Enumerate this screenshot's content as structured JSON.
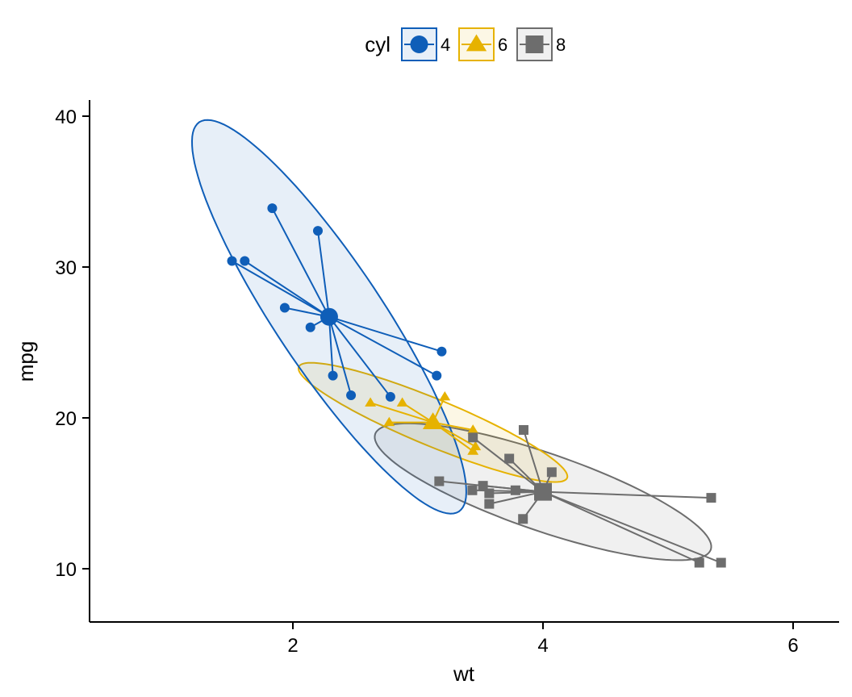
{
  "chart_data": {
    "type": "scatter",
    "xlabel": "wt",
    "ylabel": "mpg",
    "xlim": [
      0.45,
      6.4
    ],
    "ylim": [
      6.5,
      41.2
    ],
    "x_ticks": [
      2,
      4,
      6
    ],
    "y_ticks": [
      10,
      20,
      30,
      40
    ],
    "grid": false,
    "legend": {
      "title": "cyl",
      "position": "top",
      "entries": [
        "4",
        "6",
        "8"
      ]
    },
    "series": [
      {
        "name": "4",
        "color": "#0F5EB8",
        "marker": "circle",
        "centroid": [
          2.29,
          26.7
        ],
        "ellipse": {
          "center": [
            2.29,
            26.7
          ],
          "a": 2.9,
          "b": 0.66,
          "angle_deg": -56.3
        },
        "points": [
          [
            2.32,
            22.8
          ],
          [
            3.19,
            24.4
          ],
          [
            3.15,
            22.8
          ],
          [
            2.2,
            32.4
          ],
          [
            1.615,
            30.4
          ],
          [
            1.835,
            33.9
          ],
          [
            2.465,
            21.5
          ],
          [
            1.935,
            27.3
          ],
          [
            2.14,
            26.0
          ],
          [
            1.513,
            30.4
          ],
          [
            2.78,
            21.4
          ]
        ]
      },
      {
        "name": "6",
        "color": "#E6B200",
        "marker": "triangle",
        "centroid": [
          3.12,
          19.7
        ],
        "ellipse": {
          "center": [
            3.12,
            19.7
          ],
          "a": 1.8,
          "b": 0.29,
          "angle_deg": -22.5
        },
        "points": [
          [
            2.62,
            21.0
          ],
          [
            2.875,
            21.0
          ],
          [
            3.215,
            21.4
          ],
          [
            3.46,
            18.1
          ],
          [
            3.44,
            19.2
          ],
          [
            3.44,
            17.8
          ],
          [
            2.77,
            19.7
          ]
        ]
      },
      {
        "name": "8",
        "color": "#6D6D6D",
        "marker": "square",
        "centroid": [
          4.0,
          15.1
        ],
        "ellipse": {
          "center": [
            4.0,
            15.1
          ],
          "a": 2.2,
          "b": 0.48,
          "angle_deg": -19
        },
        "points": [
          [
            3.44,
            18.7
          ],
          [
            3.57,
            14.3
          ],
          [
            4.07,
            16.4
          ],
          [
            3.73,
            17.3
          ],
          [
            3.78,
            15.2
          ],
          [
            5.25,
            10.4
          ],
          [
            5.424,
            10.4
          ],
          [
            5.345,
            14.7
          ],
          [
            3.52,
            15.5
          ],
          [
            3.435,
            15.2
          ],
          [
            3.84,
            13.3
          ],
          [
            3.845,
            19.2
          ],
          [
            3.17,
            15.8
          ],
          [
            3.57,
            15.0
          ]
        ]
      }
    ]
  }
}
